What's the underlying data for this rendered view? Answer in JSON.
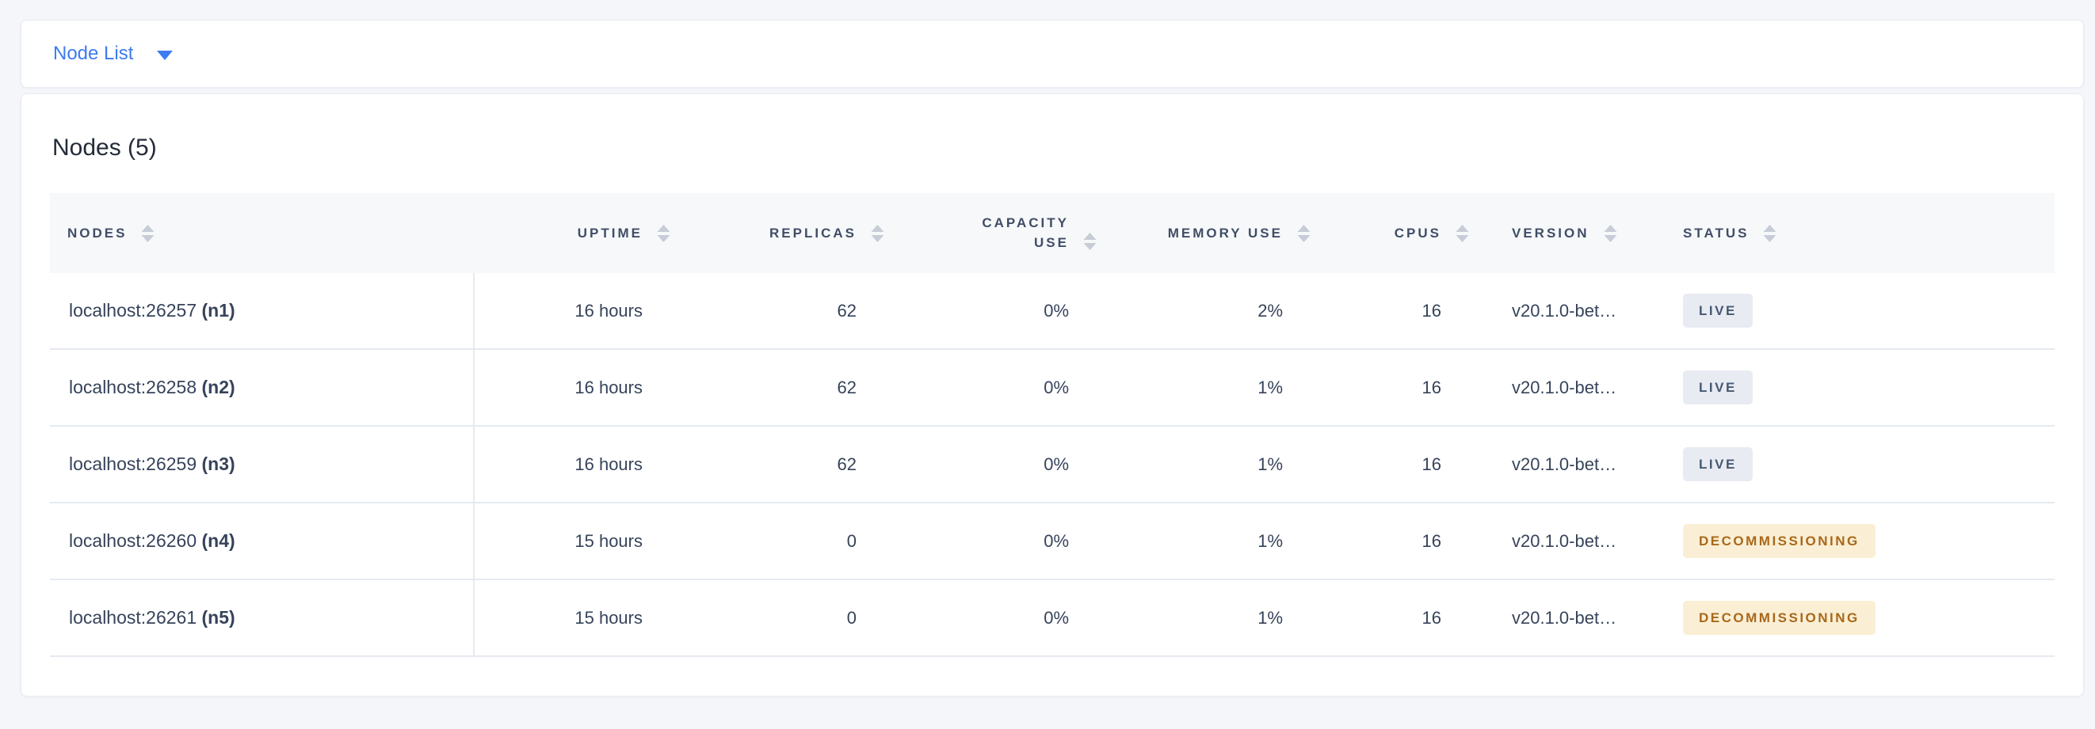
{
  "view_selector": {
    "label": "Node List"
  },
  "summary": {
    "title": "Nodes (5)"
  },
  "table": {
    "columns": [
      {
        "key": "node",
        "label": "NODES",
        "align": "left"
      },
      {
        "key": "uptime",
        "label": "UPTIME",
        "align": "right"
      },
      {
        "key": "replicas",
        "label": "REPLICAS",
        "align": "right"
      },
      {
        "key": "capacity_use",
        "label": "CAPACITY USE",
        "align": "right"
      },
      {
        "key": "memory_use",
        "label": "MEMORY USE",
        "align": "right"
      },
      {
        "key": "cpus",
        "label": "CPUS",
        "align": "right"
      },
      {
        "key": "version",
        "label": "VERSION",
        "align": "left"
      },
      {
        "key": "status",
        "label": "STATUS",
        "align": "left"
      }
    ],
    "rows": [
      {
        "address": "localhost:26257",
        "id_label": "(n1)",
        "uptime": "16 hours",
        "replicas": "62",
        "capacity_use": "0%",
        "memory_use": "2%",
        "cpus": "16",
        "version": "v20.1.0-bet…",
        "status": {
          "label": "LIVE",
          "kind": "live"
        }
      },
      {
        "address": "localhost:26258",
        "id_label": "(n2)",
        "uptime": "16 hours",
        "replicas": "62",
        "capacity_use": "0%",
        "memory_use": "1%",
        "cpus": "16",
        "version": "v20.1.0-bet…",
        "status": {
          "label": "LIVE",
          "kind": "live"
        }
      },
      {
        "address": "localhost:26259",
        "id_label": "(n3)",
        "uptime": "16 hours",
        "replicas": "62",
        "capacity_use": "0%",
        "memory_use": "1%",
        "cpus": "16",
        "version": "v20.1.0-bet…",
        "status": {
          "label": "LIVE",
          "kind": "live"
        }
      },
      {
        "address": "localhost:26260",
        "id_label": "(n4)",
        "uptime": "15 hours",
        "replicas": "0",
        "capacity_use": "0%",
        "memory_use": "1%",
        "cpus": "16",
        "version": "v20.1.0-bet…",
        "status": {
          "label": "DECOMMISSIONING",
          "kind": "decommissioning"
        }
      },
      {
        "address": "localhost:26261",
        "id_label": "(n5)",
        "uptime": "15 hours",
        "replicas": "0",
        "capacity_use": "0%",
        "memory_use": "1%",
        "cpus": "16",
        "version": "v20.1.0-bet…",
        "status": {
          "label": "DECOMMISSIONING",
          "kind": "decommissioning"
        }
      }
    ]
  },
  "icons": {
    "dropdown": "caret-down-icon",
    "sort": "sort-arrows-icon"
  },
  "colors": {
    "page_background": "#f4f6fa",
    "accent_blue": "#3d7bf0",
    "header_text": "#414d66",
    "cell_text": "#36435a",
    "header_background": "#f6f8fa",
    "row_border": "#e5e9f0",
    "sort_icon": "#c7ccd6",
    "live_badge_bg": "#e8ebf2",
    "live_badge_text": "#475872",
    "decommissioning_badge_bg": "#faefd4",
    "decommissioning_badge_text": "#a9681c"
  }
}
